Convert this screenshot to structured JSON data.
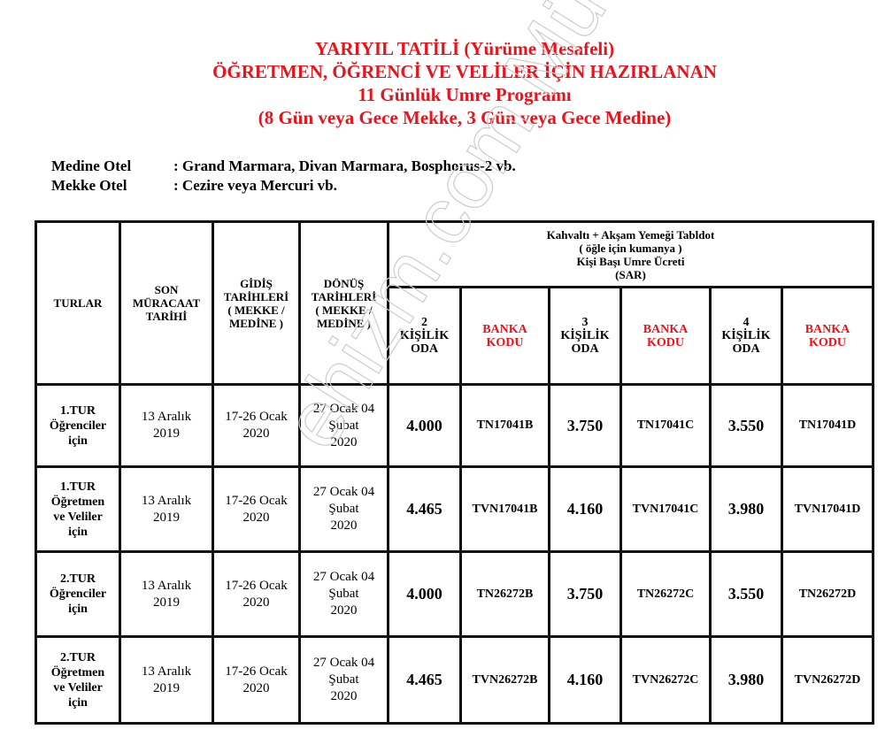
{
  "title_lines": [
    "YARIYIL TATİLİ (Yürüme Mesafeli)",
    "ÖĞRETMEN, ÖĞRENCİ VE VELİLER İÇİN HAZIRLANAN",
    "11 Günlük Umre Programı",
    "(8 Gün veya Gece Mekke, 3 Gün veya Gece Medine)"
  ],
  "hotels": [
    {
      "label": "Medine  Otel",
      "value": ": Grand Marmara, Divan Marmara, Bosphorus-2 vb."
    },
    {
      "label": "Mekke   Otel",
      "value": ": Cezire veya Mercuri vb."
    }
  ],
  "table": {
    "headers": {
      "turlar": "TURLAR",
      "son": [
        "SON",
        "MÜRACAAT",
        "TARİHİ"
      ],
      "gidis": [
        "GİDİŞ",
        "TARİHLERİ",
        "( MEKKE /",
        "MEDİNE )"
      ],
      "donus": [
        "DÖNÜŞ",
        "TARİHLERİ",
        "( MEKKE /",
        "MEDİNE )"
      ],
      "price_group": [
        "Kahvaltı + Akşam Yemeği Tabldot",
        "( öğle için kumanya )",
        "Kişi Başı Umre Ücreti",
        "(SAR)"
      ],
      "room2": [
        "2",
        "KİŞİLİK",
        "ODA"
      ],
      "room3": [
        "3",
        "KİŞİLİK",
        "ODA"
      ],
      "room4": [
        "4",
        "KİŞİLİK",
        "ODA"
      ],
      "bank": [
        "BANKA",
        "KODU"
      ]
    },
    "rows": [
      {
        "tur": [
          "1.TUR",
          "Öğrenciler",
          "için"
        ],
        "son": [
          "13 Aralık",
          "2019"
        ],
        "gidis": [
          "17-26 Ocak",
          "2020"
        ],
        "donus": [
          "27 Ocak  04",
          "Şubat",
          "2020"
        ],
        "p2": "4.000",
        "c2": "TN17041B",
        "p3": "3.750",
        "c3": "TN17041C",
        "p4": "3.550",
        "c4": "TN17041D"
      },
      {
        "tur": [
          "1.TUR",
          "Öğretmen",
          "ve Veliler",
          "için"
        ],
        "son": [
          "13 Aralık",
          "2019"
        ],
        "gidis": [
          "17-26 Ocak",
          "2020"
        ],
        "donus": [
          "27 Ocak  04",
          "Şubat",
          "2020"
        ],
        "p2": "4.465",
        "c2": "TVN17041B",
        "p3": "4.160",
        "c3": "TVN17041C",
        "p4": "3.980",
        "c4": "TVN17041D"
      },
      {
        "tur": [
          "2.TUR",
          "Öğrenciler",
          "için"
        ],
        "son": [
          "13 Aralık",
          "2019"
        ],
        "gidis": [
          "17-26 Ocak",
          "2020"
        ],
        "donus": [
          "27 Ocak  04",
          "Şubat",
          "2020"
        ],
        "p2": "4.000",
        "c2": "TN26272B",
        "p3": "3.750",
        "c3": "TN26272C",
        "p4": "3.550",
        "c4": "TN26272D"
      },
      {
        "tur": [
          "2.TUR",
          "Öğretmen",
          "ve Veliler",
          "için"
        ],
        "son": [
          "13 Aralık",
          "2019"
        ],
        "gidis": [
          "17-26 Ocak",
          "2020"
        ],
        "donus": [
          "27 Ocak  04",
          "Şubat",
          "2020"
        ],
        "p2": "4.465",
        "c2": "TVN26272B",
        "p3": "4.160",
        "c3": "TVN26272C",
        "p4": "3.980",
        "c4": "TVN26272D"
      }
    ]
  },
  "colors": {
    "accent_red": "#e8131b"
  }
}
